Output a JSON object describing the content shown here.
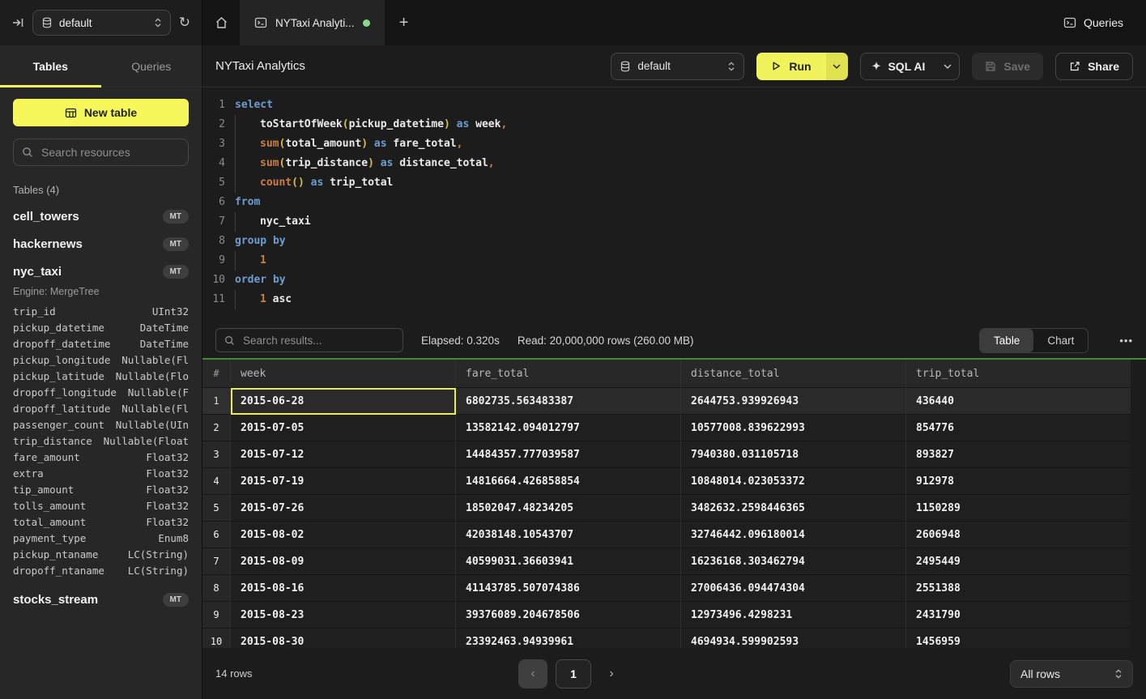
{
  "colors": {
    "accent_yellow": "#f5f75b",
    "green_divider": "#3f8c3c",
    "tab_status_dot": "#87d989",
    "selected_cell_outline": "#ebeb52"
  },
  "icons": {
    "collapse_sidebar": "sidebar-collapse-arrow",
    "database": "database-cylinder",
    "refresh": "↻",
    "home": "house",
    "console": "console-window",
    "plus": "+",
    "play": "triangle-right",
    "sparkle": "✦",
    "save": "floppy-disk",
    "share": "box-arrow-up-right",
    "search": "magnifier",
    "menu_dots": "•••",
    "prev": "‹",
    "next": "›"
  },
  "topbar": {
    "database": "default",
    "tab_title": "NYTaxi Analyti...",
    "plus": "+",
    "queries_label": "Queries"
  },
  "sidebar": {
    "tabs": [
      "Tables",
      "Queries"
    ],
    "active_tab": "Tables",
    "new_table_label": "New table",
    "search_placeholder": "Search resources",
    "section_label": "Tables (4)",
    "tables": [
      {
        "name": "cell_towers",
        "badge": "MT"
      },
      {
        "name": "hackernews",
        "badge": "MT"
      },
      {
        "name": "nyc_taxi",
        "badge": "MT",
        "engine": "Engine: MergeTree",
        "columns": [
          [
            "trip_id",
            "UInt32"
          ],
          [
            "pickup_datetime",
            "DateTime"
          ],
          [
            "dropoff_datetime",
            "DateTime"
          ],
          [
            "pickup_longitude",
            "Nullable(Fl"
          ],
          [
            "pickup_latitude",
            "Nullable(Flo"
          ],
          [
            "dropoff_longitude",
            "Nullable(F"
          ],
          [
            "dropoff_latitude",
            "Nullable(Fl"
          ],
          [
            "passenger_count",
            "Nullable(UIn"
          ],
          [
            "trip_distance",
            "Nullable(Float"
          ],
          [
            "fare_amount",
            "Float32"
          ],
          [
            "extra",
            "Float32"
          ],
          [
            "tip_amount",
            "Float32"
          ],
          [
            "tolls_amount",
            "Float32"
          ],
          [
            "total_amount",
            "Float32"
          ],
          [
            "payment_type",
            "Enum8"
          ],
          [
            "pickup_ntaname",
            "LC(String)"
          ],
          [
            "dropoff_ntaname",
            "LC(String)"
          ]
        ]
      },
      {
        "name": "stocks_stream",
        "badge": "MT"
      }
    ]
  },
  "header": {
    "title": "NYTaxi Analytics",
    "database": "default",
    "run_label": "Run",
    "sql_ai_label": "SQL AI",
    "save_label": "Save",
    "share_label": "Share"
  },
  "editor": {
    "lines": [
      {
        "segs": [
          [
            "select",
            "k"
          ]
        ]
      },
      {
        "segs": [
          [
            "",
            "ind"
          ],
          [
            "toStartOfWeek",
            "i"
          ],
          [
            "(",
            "p"
          ],
          [
            "pickup_datetime",
            "i"
          ],
          [
            ")",
            "p"
          ],
          [
            " ",
            "w"
          ],
          [
            "as",
            "k"
          ],
          [
            " ",
            "w"
          ],
          [
            "week",
            "i"
          ],
          [
            ",",
            "c"
          ]
        ]
      },
      {
        "segs": [
          [
            "",
            "ind"
          ],
          [
            "sum",
            "f"
          ],
          [
            "(",
            "p"
          ],
          [
            "total_amount",
            "i"
          ],
          [
            ")",
            "p"
          ],
          [
            " ",
            "w"
          ],
          [
            "as",
            "k"
          ],
          [
            " ",
            "w"
          ],
          [
            "fare_total",
            "i"
          ],
          [
            ",",
            "c"
          ]
        ]
      },
      {
        "segs": [
          [
            "",
            "ind"
          ],
          [
            "sum",
            "f"
          ],
          [
            "(",
            "p"
          ],
          [
            "trip_distance",
            "i"
          ],
          [
            ")",
            "p"
          ],
          [
            " ",
            "w"
          ],
          [
            "as",
            "k"
          ],
          [
            " ",
            "w"
          ],
          [
            "distance_total",
            "i"
          ],
          [
            ",",
            "c"
          ]
        ]
      },
      {
        "segs": [
          [
            "",
            "ind"
          ],
          [
            "count",
            "f"
          ],
          [
            "()",
            "p"
          ],
          [
            " ",
            "w"
          ],
          [
            "as",
            "k"
          ],
          [
            " ",
            "w"
          ],
          [
            "trip_total",
            "i"
          ]
        ]
      },
      {
        "segs": [
          [
            "from",
            "k"
          ]
        ]
      },
      {
        "segs": [
          [
            "",
            "ind"
          ],
          [
            "nyc_taxi",
            "i"
          ]
        ]
      },
      {
        "segs": [
          [
            "group by",
            "k"
          ]
        ]
      },
      {
        "segs": [
          [
            "",
            "ind"
          ],
          [
            "1",
            "n"
          ]
        ]
      },
      {
        "segs": [
          [
            "order by",
            "k"
          ]
        ]
      },
      {
        "segs": [
          [
            "",
            "ind"
          ],
          [
            "1",
            "n"
          ],
          [
            " ",
            "w"
          ],
          [
            "asc",
            "i"
          ]
        ]
      }
    ]
  },
  "results_toolbar": {
    "search_placeholder": "Search results...",
    "elapsed": "Elapsed: 0.320s",
    "read": "Read: 20,000,000 rows (260.00 MB)",
    "views": [
      "Table",
      "Chart"
    ],
    "active_view": "Table",
    "menu": "•••"
  },
  "results_table": {
    "columns": [
      "#",
      "week",
      "fare_total",
      "distance_total",
      "trip_total"
    ],
    "rows": [
      [
        "2015-06-28",
        "6802735.563483387",
        "2644753.939926943",
        "436440"
      ],
      [
        "2015-07-05",
        "13582142.094012797",
        "10577008.839622993",
        "854776"
      ],
      [
        "2015-07-12",
        "14484357.777039587",
        "7940380.031105718",
        "893827"
      ],
      [
        "2015-07-19",
        "14816664.426858854",
        "10848014.023053372",
        "912978"
      ],
      [
        "2015-07-26",
        "18502047.48234205",
        "3482632.2598446365",
        "1150289"
      ],
      [
        "2015-08-02",
        "42038148.10543707",
        "32746442.096180014",
        "2606948"
      ],
      [
        "2015-08-09",
        "40599031.36603941",
        "16236168.303462794",
        "2495449"
      ],
      [
        "2015-08-16",
        "41143785.507074386",
        "27006436.094474304",
        "2551388"
      ],
      [
        "2015-08-23",
        "39376089.204678506",
        "12973496.4298231",
        "2431790"
      ],
      [
        "2015-08-30",
        "23392463.94939961",
        "4694934.599902593",
        "1456959"
      ]
    ],
    "selected_row": 1,
    "selected_column": "week"
  },
  "footer": {
    "row_count": "14 rows",
    "prev": "‹",
    "page": "1",
    "next": "›",
    "page_size": "All rows"
  }
}
